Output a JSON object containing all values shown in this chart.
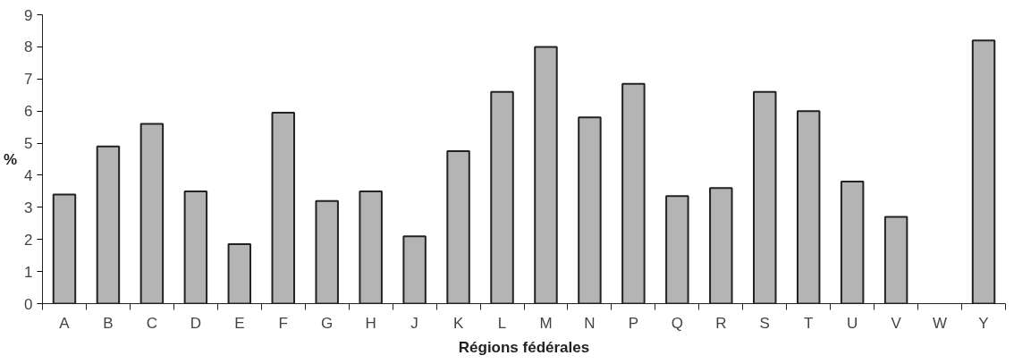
{
  "chart_data": {
    "type": "bar",
    "xlabel": "Régions fédérales",
    "ylabel": "%",
    "categories": [
      "A",
      "B",
      "C",
      "D",
      "E",
      "F",
      "G",
      "H",
      "J",
      "K",
      "L",
      "M",
      "N",
      "P",
      "Q",
      "R",
      "S",
      "T",
      "U",
      "V",
      "W",
      "Y"
    ],
    "values": [
      3.4,
      4.9,
      5.6,
      3.5,
      1.85,
      5.95,
      3.2,
      3.5,
      2.1,
      4.75,
      6.6,
      8.0,
      5.8,
      6.85,
      3.35,
      3.6,
      6.6,
      6.0,
      3.8,
      2.7,
      null,
      8.2
    ],
    "color": "#b4b4b4",
    "ylim": [
      0,
      9
    ],
    "yticks": [
      0,
      1,
      2,
      3,
      4,
      5,
      6,
      7,
      8,
      9
    ],
    "grid": false
  }
}
